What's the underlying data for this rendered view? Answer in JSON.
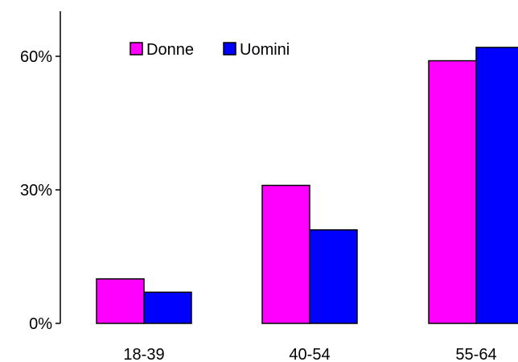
{
  "chart_data": {
    "type": "bar",
    "categories": [
      "18-39",
      "40-54",
      "55-64"
    ],
    "series": [
      {
        "name": "Donne",
        "values": [
          10,
          31,
          59
        ],
        "color": "#ff00ff"
      },
      {
        "name": "Uomini",
        "values": [
          7,
          21,
          62
        ],
        "color": "#0000ff"
      }
    ],
    "yticks": [
      {
        "value": 0,
        "label": "0%"
      },
      {
        "value": 30,
        "label": "30%"
      },
      {
        "value": 60,
        "label": "60%"
      }
    ],
    "ylim": [
      0,
      60
    ],
    "grid": false,
    "legend_position": "top-left",
    "title": "",
    "xlabel": "",
    "ylabel": ""
  }
}
